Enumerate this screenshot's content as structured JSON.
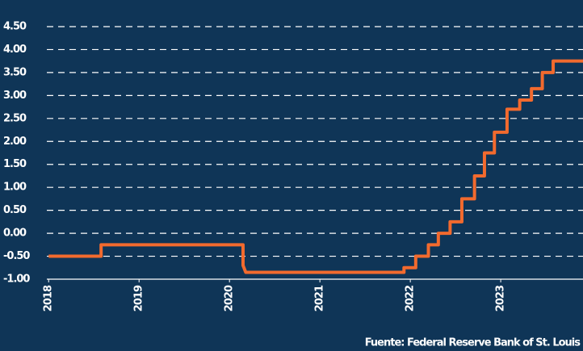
{
  "chart_data": {
    "type": "line",
    "source": "Fuente: Federal Reserve Bank of St. Louis",
    "x": [
      2018.0,
      2018.58,
      2018.58,
      2020.15,
      2020.15,
      2020.18,
      2021.93,
      2021.93,
      2022.06,
      2022.06,
      2022.2,
      2022.2,
      2022.31,
      2022.31,
      2022.44,
      2022.44,
      2022.57,
      2022.57,
      2022.71,
      2022.71,
      2022.82,
      2022.82,
      2022.93,
      2022.93,
      2023.07,
      2023.07,
      2023.21,
      2023.21,
      2023.34,
      2023.34,
      2023.46,
      2023.46,
      2023.58,
      2023.58,
      2023.91
    ],
    "series": [
      {
        "color": "#f26a2e",
        "values": [
          -0.5,
          -0.5,
          -0.25,
          -0.25,
          -0.7,
          -0.85,
          -0.85,
          -0.75,
          -0.75,
          -0.5,
          -0.5,
          -0.25,
          -0.25,
          0,
          0,
          0.25,
          0.25,
          0.75,
          0.75,
          1.25,
          1.25,
          1.75,
          1.75,
          2.2,
          2.2,
          2.7,
          2.7,
          2.9,
          2.9,
          3.15,
          3.15,
          3.5,
          3.5,
          3.75,
          3.75
        ]
      }
    ],
    "xlim": [
      2017.98,
      2023.91
    ],
    "xticks": [
      2018,
      2019,
      2020,
      2021,
      2022,
      2023
    ],
    "ylim": [
      -1,
      4.5
    ],
    "yticks": [
      {
        "value": -1,
        "label": "-1.00"
      },
      {
        "value": -0.5,
        "label": "-0.50"
      },
      {
        "value": 0,
        "label": "0.00"
      },
      {
        "value": 0.5,
        "label": "0.50"
      },
      {
        "value": 1,
        "label": "1.00"
      },
      {
        "value": 1.5,
        "label": "1.50"
      },
      {
        "value": 2,
        "label": "2.00"
      },
      {
        "value": 2.5,
        "label": "2.50"
      },
      {
        "value": 3,
        "label": "3.00"
      },
      {
        "value": 3.5,
        "label": "3.50"
      },
      {
        "value": 4,
        "label": "4.00"
      },
      {
        "value": 4.5,
        "label": "4.50"
      }
    ],
    "grid": true
  }
}
